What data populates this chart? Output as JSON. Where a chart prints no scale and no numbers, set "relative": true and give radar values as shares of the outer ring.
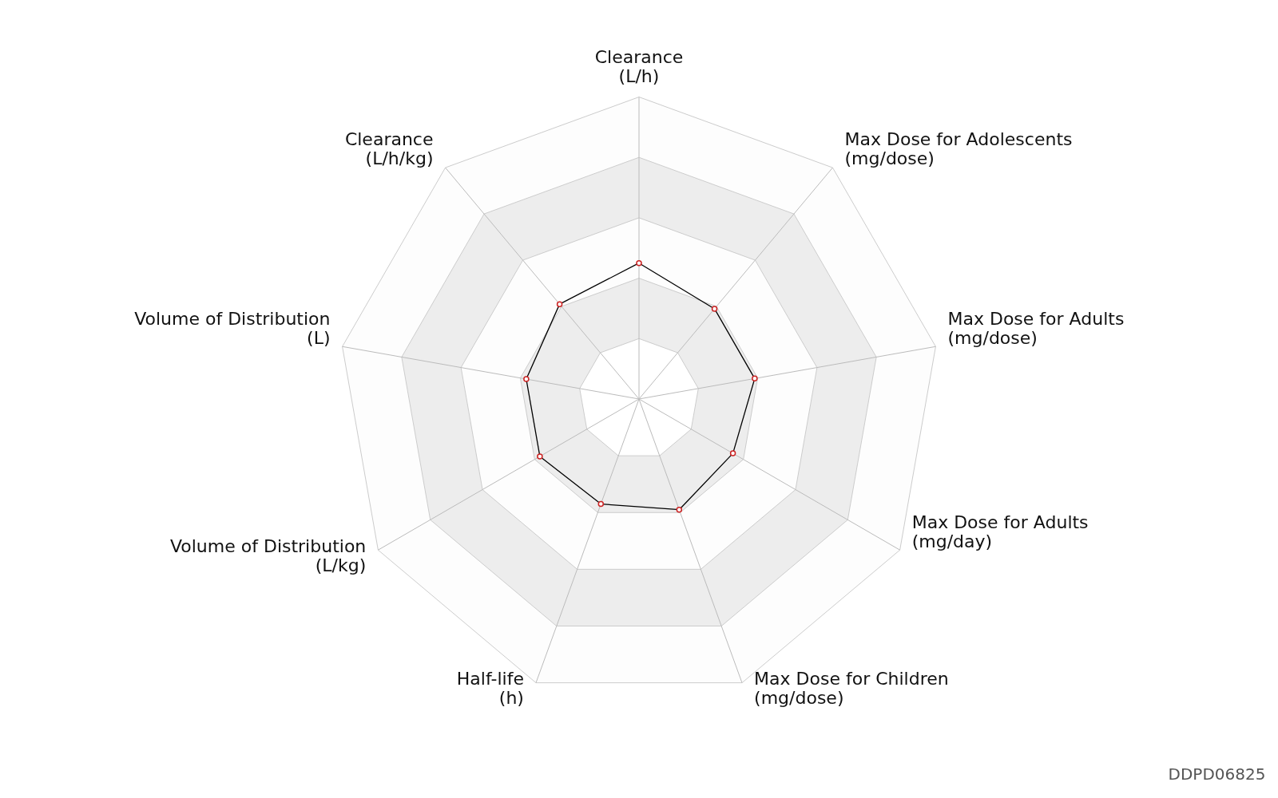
{
  "chart_data": {
    "type": "radar",
    "relative": true,
    "grid": true,
    "marker": "circle",
    "line_style": "solid",
    "categories": [
      "Clearance (L/h)",
      "Max Dose for Adolescents (mg/dose)",
      "Max Dose for Adults (mg/dose)",
      "Max Dose for Adults (mg/day)",
      "Max Dose for Children (mg/dose)",
      "Half-life (h)",
      "Volume of Distribution (L/kg)",
      "Volume of Distribution (L)",
      "Clearance (L/h/kg)"
    ],
    "series": [
      {
        "color": "#000000",
        "values": [
          0.45,
          0.39,
          0.39,
          0.36,
          0.39,
          0.37,
          0.38,
          0.38,
          0.41
        ]
      }
    ],
    "annotations": [
      "DDPD06825"
    ]
  }
}
